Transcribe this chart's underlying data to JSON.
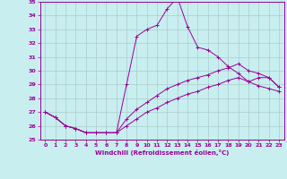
{
  "xlabel": "Windchill (Refroidissement éolien,°C)",
  "background_color": "#c8eef0",
  "line_color": "#990099",
  "grid_color": "#aacccc",
  "xlim": [
    -0.5,
    23.5
  ],
  "ylim": [
    25,
    35
  ],
  "yticks": [
    25,
    26,
    27,
    28,
    29,
    30,
    31,
    32,
    33,
    34,
    35
  ],
  "xticks": [
    0,
    1,
    2,
    3,
    4,
    5,
    6,
    7,
    8,
    9,
    10,
    11,
    12,
    13,
    14,
    15,
    16,
    17,
    18,
    19,
    20,
    21,
    22,
    23
  ],
  "series": [
    [
      27.0,
      26.6,
      26.0,
      25.8,
      25.5,
      25.5,
      25.5,
      25.5,
      29.0,
      32.5,
      33.0,
      33.3,
      34.5,
      35.3,
      33.2,
      31.7,
      31.5,
      31.0,
      30.3,
      29.8,
      29.2,
      29.5,
      29.5,
      28.8
    ],
    [
      27.0,
      26.6,
      26.0,
      25.8,
      25.5,
      25.5,
      25.5,
      25.5,
      26.5,
      27.2,
      27.7,
      28.2,
      28.7,
      29.0,
      29.3,
      29.5,
      29.7,
      30.0,
      30.2,
      30.5,
      30.0,
      29.8,
      29.5,
      28.8
    ],
    [
      27.0,
      26.6,
      26.0,
      25.8,
      25.5,
      25.5,
      25.5,
      25.5,
      26.0,
      26.5,
      27.0,
      27.3,
      27.7,
      28.0,
      28.3,
      28.5,
      28.8,
      29.0,
      29.3,
      29.5,
      29.2,
      28.9,
      28.7,
      28.5
    ]
  ]
}
